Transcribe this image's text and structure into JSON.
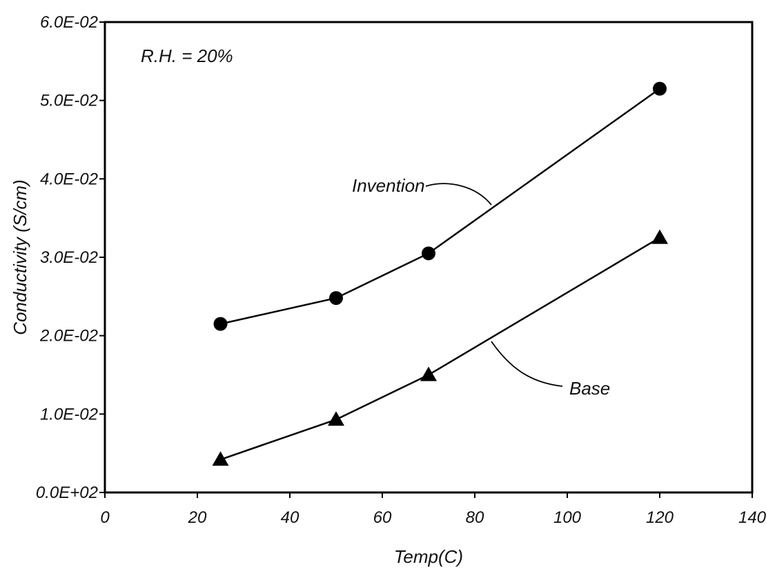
{
  "chart_data": {
    "type": "line",
    "xlabel": "Temp(C)",
    "ylabel": "Conductivity (S/cm)",
    "xlim": [
      0,
      140
    ],
    "ylim": [
      0,
      0.06
    ],
    "x_ticks": [
      "0",
      "20",
      "40",
      "60",
      "80",
      "100",
      "120",
      "140"
    ],
    "y_ticks": [
      "0.0E+02",
      "1.0E-02",
      "2.0E-02",
      "3.0E-02",
      "4.0E-02",
      "5.0E-02",
      "6.0E-02"
    ],
    "grid": false,
    "annotations": [
      "R.H. = 20%"
    ],
    "series": [
      {
        "name": "Invention",
        "marker": "circle",
        "x": [
          25,
          50,
          70,
          120
        ],
        "y": [
          0.0215,
          0.0248,
          0.0305,
          0.0515
        ]
      },
      {
        "name": "Base",
        "marker": "triangle",
        "x": [
          25,
          50,
          70,
          120
        ],
        "y": [
          0.0042,
          0.0093,
          0.015,
          0.0325
        ]
      }
    ]
  }
}
